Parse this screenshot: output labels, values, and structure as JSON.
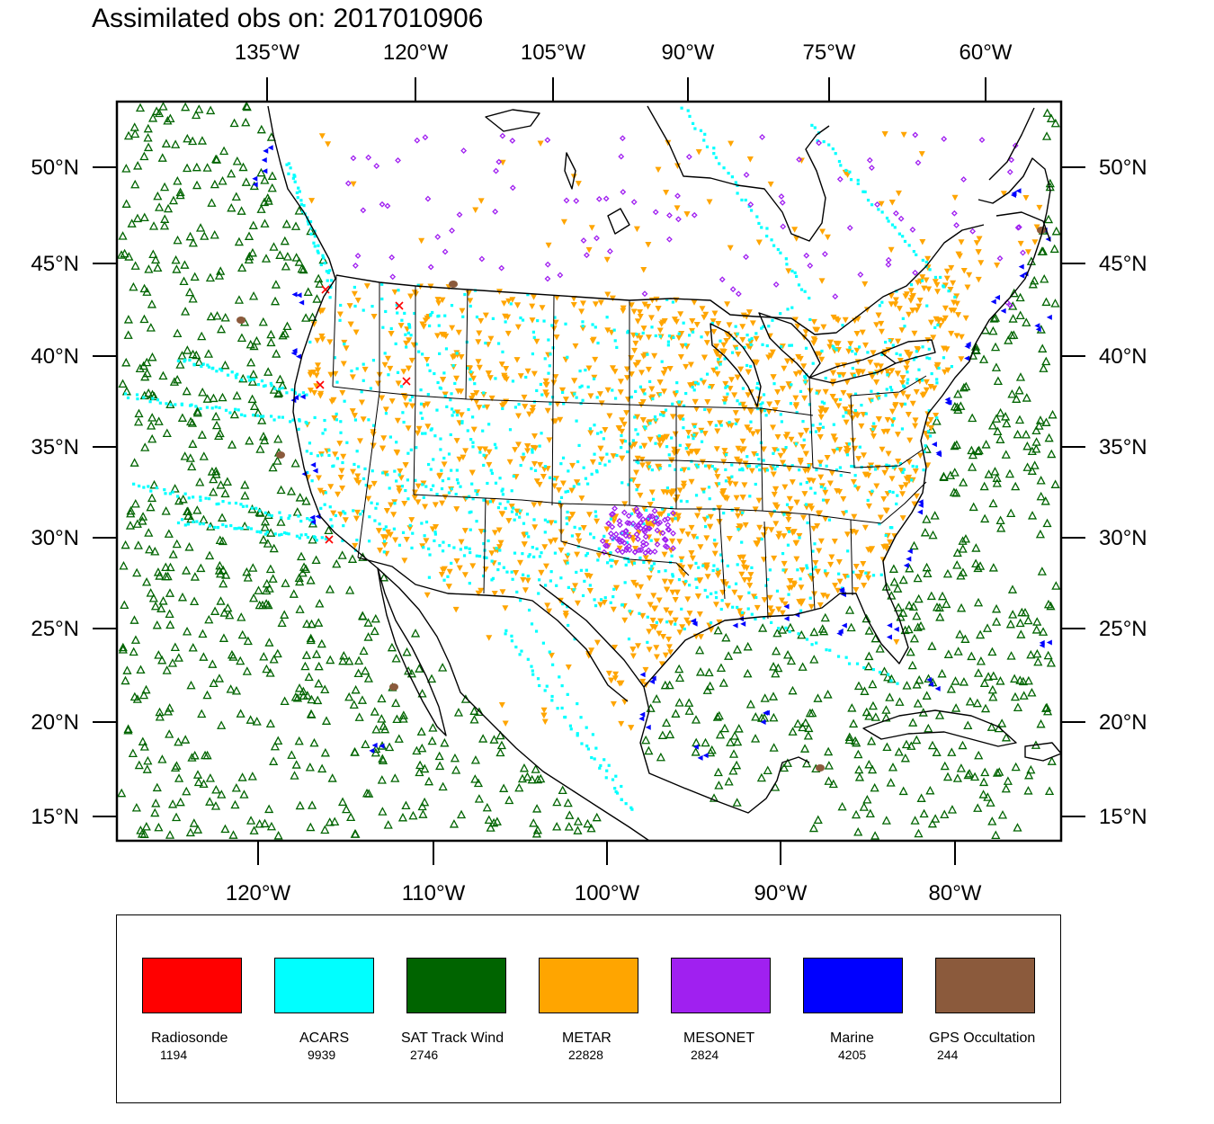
{
  "title": "Assimilated obs on: 2017010906",
  "map": {
    "top_lon_labels": [
      "135°W",
      "120°W",
      "105°W",
      "90°W",
      "75°W",
      "60°W"
    ],
    "bottom_lon_labels": [
      "120°W",
      "110°W",
      "100°W",
      "90°W",
      "80°W"
    ],
    "lat_labels": [
      "50°N",
      "45°N",
      "40°N",
      "35°N",
      "30°N",
      "25°N",
      "20°N",
      "15°N"
    ]
  },
  "legend": [
    {
      "name": "Radiosonde",
      "count": "1194",
      "color": "#ff0000",
      "marker": "x-mark"
    },
    {
      "name": "ACARS",
      "count": "9939",
      "color": "#00ffff",
      "marker": "dot"
    },
    {
      "name": "SAT Track Wind",
      "count": "2746",
      "color": "#006400",
      "marker": "triangle-up"
    },
    {
      "name": "METAR",
      "count": "22828",
      "color": "#ffa500",
      "marker": "triangle-down"
    },
    {
      "name": "MESONET",
      "count": "2824",
      "color": "#a020f0",
      "marker": "diamond"
    },
    {
      "name": "Marine",
      "count": "4205",
      "color": "#0000ff",
      "marker": "triangle-left"
    },
    {
      "name": "GPS Occultation",
      "count": "244",
      "color": "#8b5a3c",
      "marker": "blob"
    }
  ]
}
